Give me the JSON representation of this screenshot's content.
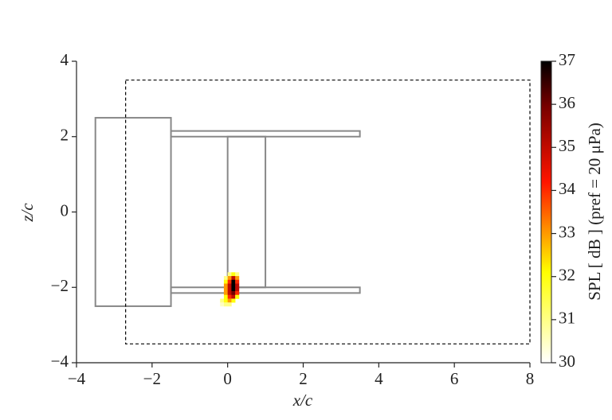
{
  "chart_data": {
    "type": "heatmap",
    "xlabel": "x/c",
    "ylabel": "z/c",
    "colorbar_label": "SPL [ dB ] (pref = 20 μPa)",
    "colormap": "hot_r",
    "xlim": [
      -4,
      8
    ],
    "ylim": [
      -4,
      4
    ],
    "xticks": [
      {
        "value": -4,
        "label": "−4"
      },
      {
        "value": -2,
        "label": "−2"
      },
      0,
      2,
      4,
      6,
      8
    ],
    "yticks": [
      {
        "value": -4,
        "label": "−4"
      },
      {
        "value": -2,
        "label": "−2"
      },
      0,
      2,
      4
    ],
    "clim": [
      30,
      37
    ],
    "cticks": [
      30,
      31,
      32,
      33,
      34,
      35,
      36,
      37
    ],
    "outlines": [
      {
        "x": [
          -3.5,
          -1.5
        ],
        "y": [
          -2.5,
          2.5
        ],
        "color": "#888888",
        "style": "solid"
      },
      {
        "x": [
          -1.5,
          3.5
        ],
        "y": [
          2.0,
          2.15
        ],
        "color": "#888888",
        "style": "solid"
      },
      {
        "x": [
          -1.5,
          3.5
        ],
        "y": [
          -2.15,
          -2.0
        ],
        "color": "#888888",
        "style": "solid"
      },
      {
        "x": [
          0,
          1
        ],
        "y": [
          -2,
          2
        ],
        "color": "#888888",
        "style": "solid"
      },
      {
        "x": [
          -2.7,
          8
        ],
        "y": [
          -3.5,
          3.5
        ],
        "color": "#000000",
        "style": "dashed"
      }
    ],
    "x": [
      0.05,
      0.15,
      0.25,
      -0.05,
      0.05,
      0.15,
      0.25,
      -0.05,
      0.05,
      0.15,
      0.25,
      -0.05,
      0.05,
      0.15,
      0.25,
      -0.05,
      0.05,
      0.15,
      0.25,
      -0.05,
      0.05,
      0.15,
      0.25,
      -0.05,
      0.05,
      0.15,
      0.25,
      -0.15,
      -0.05,
      0.05,
      0.15,
      -0.15,
      -0.05,
      0.05
    ],
    "y": [
      -1.65,
      -1.65,
      -1.65,
      -1.75,
      -1.75,
      -1.75,
      -1.75,
      -1.85,
      -1.85,
      -1.85,
      -1.85,
      -1.95,
      -1.95,
      -1.95,
      -1.95,
      -2.05,
      -2.05,
      -2.05,
      -2.05,
      -2.15,
      -2.15,
      -2.15,
      -2.15,
      -2.25,
      -2.25,
      -2.25,
      -2.25,
      -2.35,
      -2.35,
      -2.35,
      -2.35,
      -2.45,
      -2.45,
      -2.45
    ],
    "values": [
      31,
      32,
      31,
      31,
      33,
      35,
      33,
      32,
      34,
      37,
      34,
      33,
      35,
      37,
      35,
      33,
      35,
      37,
      35,
      33,
      35,
      36,
      34,
      32,
      34,
      35,
      32,
      31,
      32,
      33,
      32,
      30.5,
      31,
      31
    ]
  }
}
